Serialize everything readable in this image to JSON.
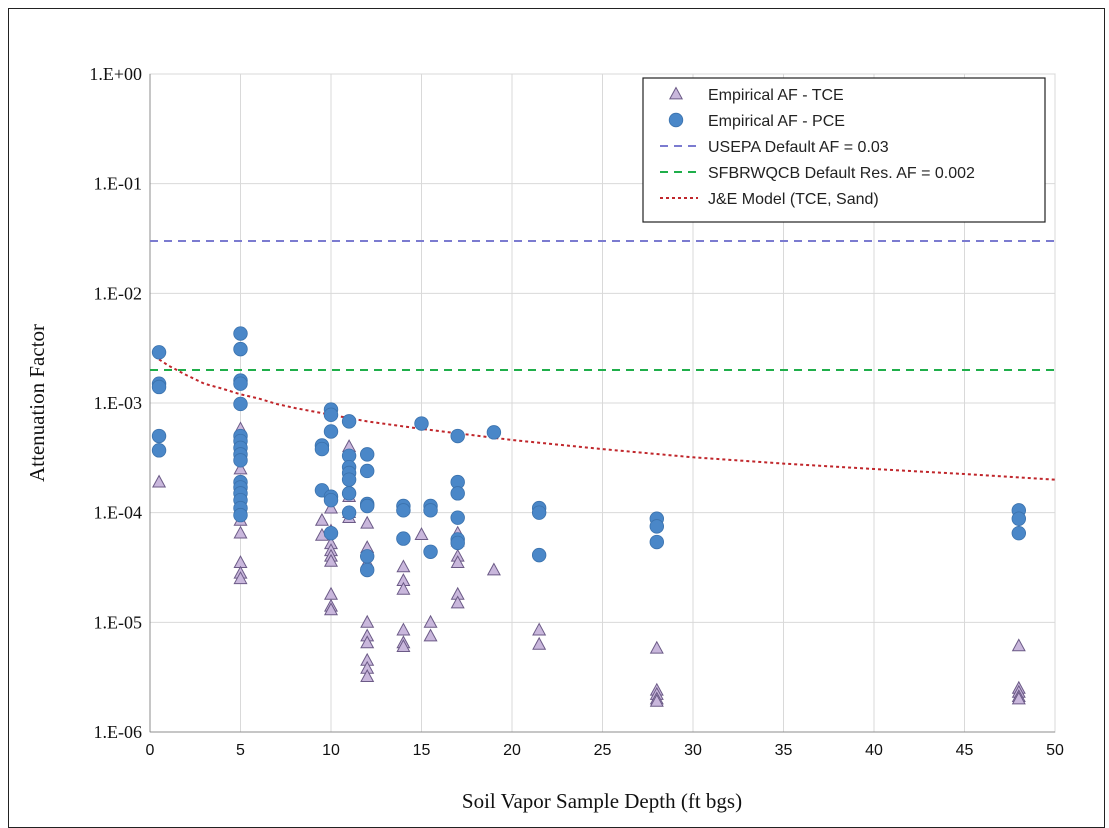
{
  "chart_data": {
    "type": "scatter",
    "xlabel": "Soil Vapor Sample Depth (ft bgs)",
    "ylabel": "Attenuation Factor",
    "xlim": [
      0,
      50
    ],
    "ylim": [
      1e-06,
      1
    ],
    "yscale": "log",
    "grid": true,
    "legend_position": "top-right",
    "x_ticks": [
      0,
      5,
      10,
      15,
      20,
      25,
      30,
      35,
      40,
      45,
      50
    ],
    "y_ticks": [
      1e-06,
      1e-05,
      0.0001,
      0.001,
      0.01,
      0.1,
      1
    ],
    "y_tick_labels": [
      "1.E-06",
      "1.E-05",
      "1.E-04",
      "1.E-03",
      "1.E-02",
      "1.E-01",
      "1.E+00"
    ],
    "series": [
      {
        "name": "Empirical AF - TCE",
        "kind": "scatter",
        "marker": "triangle",
        "color": "#c9b7dc",
        "edge_color": "#6b5a86",
        "points": [
          [
            0.5,
            0.00019
          ],
          [
            5,
            0.00058
          ],
          [
            5,
            0.00045
          ],
          [
            5,
            0.00035
          ],
          [
            5,
            0.00025
          ],
          [
            5,
            0.00018
          ],
          [
            5,
            0.00014
          ],
          [
            5,
            0.00011
          ],
          [
            5,
            8.5e-05
          ],
          [
            5,
            6.5e-05
          ],
          [
            5,
            3.5e-05
          ],
          [
            5,
            2.8e-05
          ],
          [
            5,
            2.5e-05
          ],
          [
            9.5,
            8.5e-05
          ],
          [
            9.5,
            6.2e-05
          ],
          [
            10,
            0.00011
          ],
          [
            10,
            6.8e-05
          ],
          [
            10,
            5.2e-05
          ],
          [
            10,
            4.5e-05
          ],
          [
            10,
            4e-05
          ],
          [
            10,
            3.6e-05
          ],
          [
            10,
            1.8e-05
          ],
          [
            10,
            1.4e-05
          ],
          [
            10,
            1.3e-05
          ],
          [
            11,
            0.0004
          ],
          [
            11,
            0.00014
          ],
          [
            11,
            0.0001
          ],
          [
            11,
            9e-05
          ],
          [
            12,
            4.8e-05
          ],
          [
            12,
            3.5e-05
          ],
          [
            12,
            1e-05
          ],
          [
            12,
            8e-05
          ],
          [
            12,
            7.5e-06
          ],
          [
            12,
            6.5e-06
          ],
          [
            12,
            4.5e-06
          ],
          [
            12,
            3.8e-06
          ],
          [
            12,
            3.2e-06
          ],
          [
            14,
            3.2e-05
          ],
          [
            14,
            2.4e-05
          ],
          [
            14,
            2e-05
          ],
          [
            14,
            8.5e-06
          ],
          [
            14,
            6.5e-06
          ],
          [
            14,
            6e-06
          ],
          [
            15,
            6.3e-05
          ],
          [
            15.5,
            1e-05
          ],
          [
            15.5,
            7.5e-06
          ],
          [
            17,
            6.5e-05
          ],
          [
            17,
            5.5e-05
          ],
          [
            17,
            4e-05
          ],
          [
            17,
            3.5e-05
          ],
          [
            17,
            1.8e-05
          ],
          [
            17,
            1.5e-05
          ],
          [
            19,
            3e-05
          ],
          [
            21.5,
            8.5e-06
          ],
          [
            21.5,
            6.3e-06
          ],
          [
            28,
            5.8e-06
          ],
          [
            28,
            2.4e-06
          ],
          [
            28,
            2.2e-06
          ],
          [
            28,
            2e-06
          ],
          [
            28,
            1.9e-06
          ],
          [
            48,
            6.1e-06
          ],
          [
            48,
            2.5e-06
          ],
          [
            48,
            2.3e-06
          ],
          [
            48,
            2.1e-06
          ],
          [
            48,
            2e-06
          ]
        ]
      },
      {
        "name": "Empirical AF - PCE",
        "kind": "scatter",
        "marker": "circle",
        "color": "#4a87c8",
        "points": [
          [
            0.5,
            0.0029
          ],
          [
            0.5,
            0.0015
          ],
          [
            0.5,
            0.0014
          ],
          [
            0.5,
            0.0005
          ],
          [
            0.5,
            0.00037
          ],
          [
            5,
            0.0043
          ],
          [
            5,
            0.0031
          ],
          [
            5,
            0.0016
          ],
          [
            5,
            0.0015
          ],
          [
            5,
            0.00098
          ],
          [
            5,
            0.0005
          ],
          [
            5,
            0.00045
          ],
          [
            5,
            0.00039
          ],
          [
            5,
            0.00034
          ],
          [
            5,
            0.0003
          ],
          [
            5,
            0.00019
          ],
          [
            5,
            0.00017
          ],
          [
            5,
            0.00015
          ],
          [
            5,
            0.00013
          ],
          [
            5,
            0.00011
          ],
          [
            5,
            9.5e-05
          ],
          [
            9.5,
            0.00041
          ],
          [
            9.5,
            0.00038
          ],
          [
            9.5,
            0.00016
          ],
          [
            10,
            0.00087
          ],
          [
            10,
            0.00078
          ],
          [
            10,
            0.00055
          ],
          [
            10,
            0.00014
          ],
          [
            10,
            0.00013
          ],
          [
            10,
            6.5e-05
          ],
          [
            11,
            0.00068
          ],
          [
            11,
            0.00033
          ],
          [
            11,
            0.00026
          ],
          [
            11,
            0.00023
          ],
          [
            11,
            0.0002
          ],
          [
            11,
            0.00015
          ],
          [
            11,
            0.0001
          ],
          [
            12,
            0.00034
          ],
          [
            12,
            0.00024
          ],
          [
            12,
            0.00012
          ],
          [
            12,
            0.000115
          ],
          [
            12,
            4e-05
          ],
          [
            12,
            3e-05
          ],
          [
            14,
            0.000115
          ],
          [
            14,
            0.000105
          ],
          [
            14,
            5.8e-05
          ],
          [
            15,
            0.00065
          ],
          [
            15.5,
            0.000115
          ],
          [
            15.5,
            0.000105
          ],
          [
            15.5,
            4.4e-05
          ],
          [
            17,
            0.0005
          ],
          [
            17,
            0.00019
          ],
          [
            17,
            0.00015
          ],
          [
            17,
            9e-05
          ],
          [
            17,
            5.7e-05
          ],
          [
            17,
            5.3e-05
          ],
          [
            19,
            0.00054
          ],
          [
            21.5,
            0.00011
          ],
          [
            21.5,
            0.0001
          ],
          [
            21.5,
            4.1e-05
          ],
          [
            28,
            8.8e-05
          ],
          [
            28,
            7.5e-05
          ],
          [
            28,
            5.4e-05
          ],
          [
            48,
            0.000105
          ],
          [
            48,
            8.8e-05
          ],
          [
            48,
            6.5e-05
          ]
        ]
      },
      {
        "name": "USEPA Default AF = 0.03",
        "kind": "hline",
        "value": 0.03,
        "color": "#7b7bd0",
        "dash": "dashed"
      },
      {
        "name": "SFBRWQCB Default Res. AF = 0.002",
        "kind": "hline",
        "value": 0.002,
        "color": "#1fae4a",
        "dash": "dashed"
      },
      {
        "name": "J&E Model (TCE, Sand)",
        "kind": "line",
        "color": "#c0262b",
        "dash": "dotted",
        "points": [
          [
            0.5,
            0.0025
          ],
          [
            1,
            0.0022
          ],
          [
            2,
            0.0018
          ],
          [
            3,
            0.0015
          ],
          [
            4,
            0.00135
          ],
          [
            5,
            0.0012
          ],
          [
            6,
            0.0011
          ],
          [
            7,
            0.00098
          ],
          [
            8,
            0.0009
          ],
          [
            10,
            0.00078
          ],
          [
            12,
            0.00068
          ],
          [
            15,
            0.00058
          ],
          [
            20,
            0.00046
          ],
          [
            25,
            0.00038
          ],
          [
            30,
            0.00032
          ],
          [
            35,
            0.00028
          ],
          [
            40,
            0.00025
          ],
          [
            45,
            0.000225
          ],
          [
            50,
            0.0002
          ]
        ]
      }
    ]
  }
}
